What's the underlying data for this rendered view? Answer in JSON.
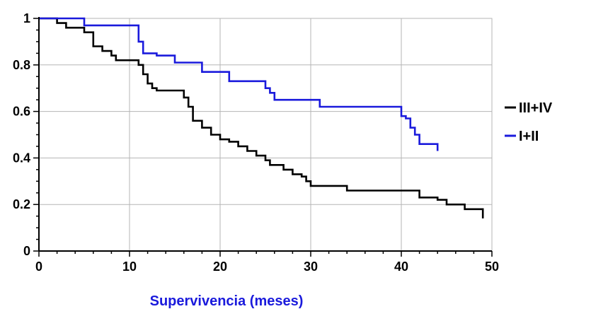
{
  "chart_data": {
    "type": "line",
    "step": true,
    "title": "",
    "xlabel": "Supervivencia (meses)",
    "ylabel": "",
    "xlim": [
      0,
      50
    ],
    "ylim": [
      0,
      1
    ],
    "x_ticks": [
      0,
      10,
      20,
      30,
      40,
      50
    ],
    "y_ticks": [
      0,
      0.2,
      0.4,
      0.6,
      0.8,
      1
    ],
    "y_tick_labels": [
      "0",
      "0.2",
      "0.4",
      "0.6",
      "0.8",
      "1"
    ],
    "grid": true,
    "legend_position": "right",
    "series": [
      {
        "name": "III+IV",
        "color": "#000000",
        "points": [
          [
            0,
            1
          ],
          [
            2,
            0.98
          ],
          [
            3,
            0.96
          ],
          [
            5,
            0.94
          ],
          [
            6,
            0.88
          ],
          [
            7,
            0.86
          ],
          [
            8,
            0.84
          ],
          [
            8.5,
            0.82
          ],
          [
            11,
            0.8
          ],
          [
            11.5,
            0.76
          ],
          [
            12,
            0.72
          ],
          [
            12.5,
            0.7
          ],
          [
            13,
            0.69
          ],
          [
            16,
            0.66
          ],
          [
            16.5,
            0.62
          ],
          [
            17,
            0.56
          ],
          [
            18,
            0.53
          ],
          [
            19,
            0.5
          ],
          [
            20,
            0.48
          ],
          [
            21,
            0.47
          ],
          [
            22,
            0.45
          ],
          [
            23,
            0.43
          ],
          [
            24,
            0.41
          ],
          [
            25,
            0.39
          ],
          [
            25.5,
            0.37
          ],
          [
            27,
            0.35
          ],
          [
            28,
            0.33
          ],
          [
            29,
            0.32
          ],
          [
            29.5,
            0.3
          ],
          [
            30,
            0.28
          ],
          [
            34,
            0.26
          ],
          [
            42,
            0.23
          ],
          [
            44,
            0.22
          ],
          [
            45,
            0.2
          ],
          [
            47,
            0.18
          ],
          [
            49,
            0.14
          ]
        ]
      },
      {
        "name": "I+II",
        "color": "#1a1adc",
        "points": [
          [
            0,
            1
          ],
          [
            5,
            0.97
          ],
          [
            11,
            0.9
          ],
          [
            11.5,
            0.85
          ],
          [
            13,
            0.84
          ],
          [
            15,
            0.81
          ],
          [
            18,
            0.77
          ],
          [
            21,
            0.73
          ],
          [
            25,
            0.7
          ],
          [
            25.5,
            0.68
          ],
          [
            26,
            0.65
          ],
          [
            31,
            0.62
          ],
          [
            40,
            0.58
          ],
          [
            40.5,
            0.57
          ],
          [
            41,
            0.53
          ],
          [
            41.5,
            0.5
          ],
          [
            42,
            0.46
          ],
          [
            44,
            0.43
          ]
        ]
      }
    ]
  }
}
